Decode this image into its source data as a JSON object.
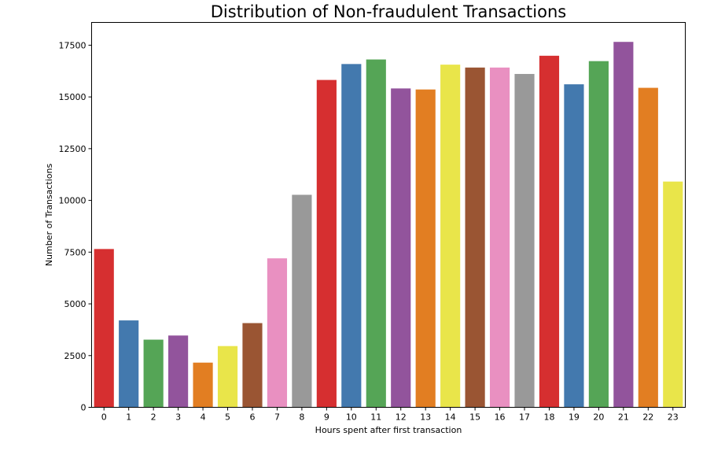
{
  "chart_data": {
    "type": "bar",
    "title": "Distribution of Non-fraudulent Transactions",
    "xlabel": "Hours spent after first transaction",
    "ylabel": "Number of Transactions",
    "categories": [
      "0",
      "1",
      "2",
      "3",
      "4",
      "5",
      "6",
      "7",
      "8",
      "9",
      "10",
      "11",
      "12",
      "13",
      "14",
      "15",
      "16",
      "17",
      "18",
      "19",
      "20",
      "21",
      "22",
      "23"
    ],
    "values": [
      7650,
      4200,
      3270,
      3470,
      2160,
      2960,
      4070,
      7200,
      10270,
      15820,
      16590,
      16810,
      15410,
      15360,
      16560,
      16420,
      16420,
      16110,
      16990,
      15610,
      16730,
      17660,
      15440,
      10910
    ],
    "yticks": [
      0,
      2500,
      5000,
      7500,
      10000,
      12500,
      15000,
      17500
    ],
    "ylim": [
      0,
      18600
    ],
    "grid": false,
    "colors": [
      "#d62f30",
      "#4379ae",
      "#55a556",
      "#92549c",
      "#e27e22",
      "#e9e54a",
      "#9a5533",
      "#e990c1",
      "#999999"
    ]
  }
}
